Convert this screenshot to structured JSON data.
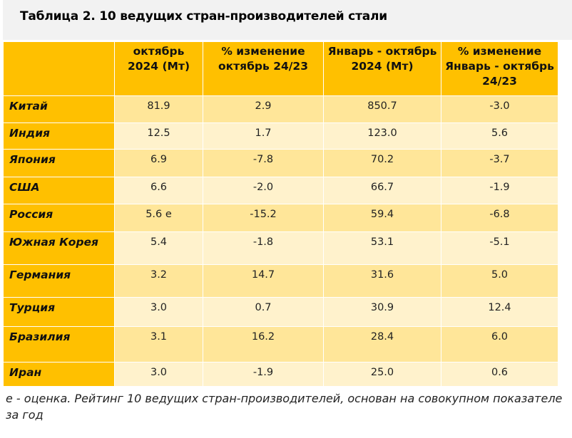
{
  "title": "Таблица 2. 10 ведущих стран-производителей стали",
  "headers": [
    "",
    "октябрь 2024 (Мт)",
    "% изменение октябрь 24/23",
    "Январь - октябрь 2024 (Мт)",
    "% изменение Январь - октябрь 24/23"
  ],
  "rows": [
    {
      "country": "Китай",
      "oct": "81.9",
      "oct_chg": "2.9",
      "ytd": "850.7",
      "ytd_chg": "-3.0"
    },
    {
      "country": "Индия",
      "oct": "12.5",
      "oct_chg": "1.7",
      "ytd": "123.0",
      "ytd_chg": "5.6"
    },
    {
      "country": "Япония",
      "oct": "6.9",
      "oct_chg": "-7.8",
      "ytd": "70.2",
      "ytd_chg": "-3.7"
    },
    {
      "country": "США",
      "oct": "6.6",
      "oct_chg": "-2.0",
      "ytd": "66.7",
      "ytd_chg": "-1.9"
    },
    {
      "country": "Россия",
      "oct": "5.6 е",
      "oct_chg": "-15.2",
      "ytd": "59.4",
      "ytd_chg": "-6.8"
    },
    {
      "country": "Южная Корея",
      "oct": "5.4",
      "oct_chg": "-1.8",
      "ytd": "53.1",
      "ytd_chg": "-5.1"
    },
    {
      "country": "Германия",
      "oct": "3.2",
      "oct_chg": "14.7",
      "ytd": "31.6",
      "ytd_chg": "5.0"
    },
    {
      "country": "Турция",
      "oct": "3.0",
      "oct_chg": "0.7",
      "ytd": "30.9",
      "ytd_chg": "12.4"
    },
    {
      "country": "Бразилия",
      "oct": "3.1",
      "oct_chg": "16.2",
      "ytd": "28.4",
      "ytd_chg": "6.0"
    },
    {
      "country": "Иран",
      "oct": "3.0",
      "oct_chg": "-1.9",
      "ytd": "25.0",
      "ytd_chg": "0.6"
    }
  ],
  "note": "е - оценка. Рейтинг 10 ведущих стран-производителей, основан на совокупном показателе за год",
  "colors": {
    "header": "#ffc000",
    "row_dark": "#ffe699",
    "row_light": "#fff2cc"
  }
}
